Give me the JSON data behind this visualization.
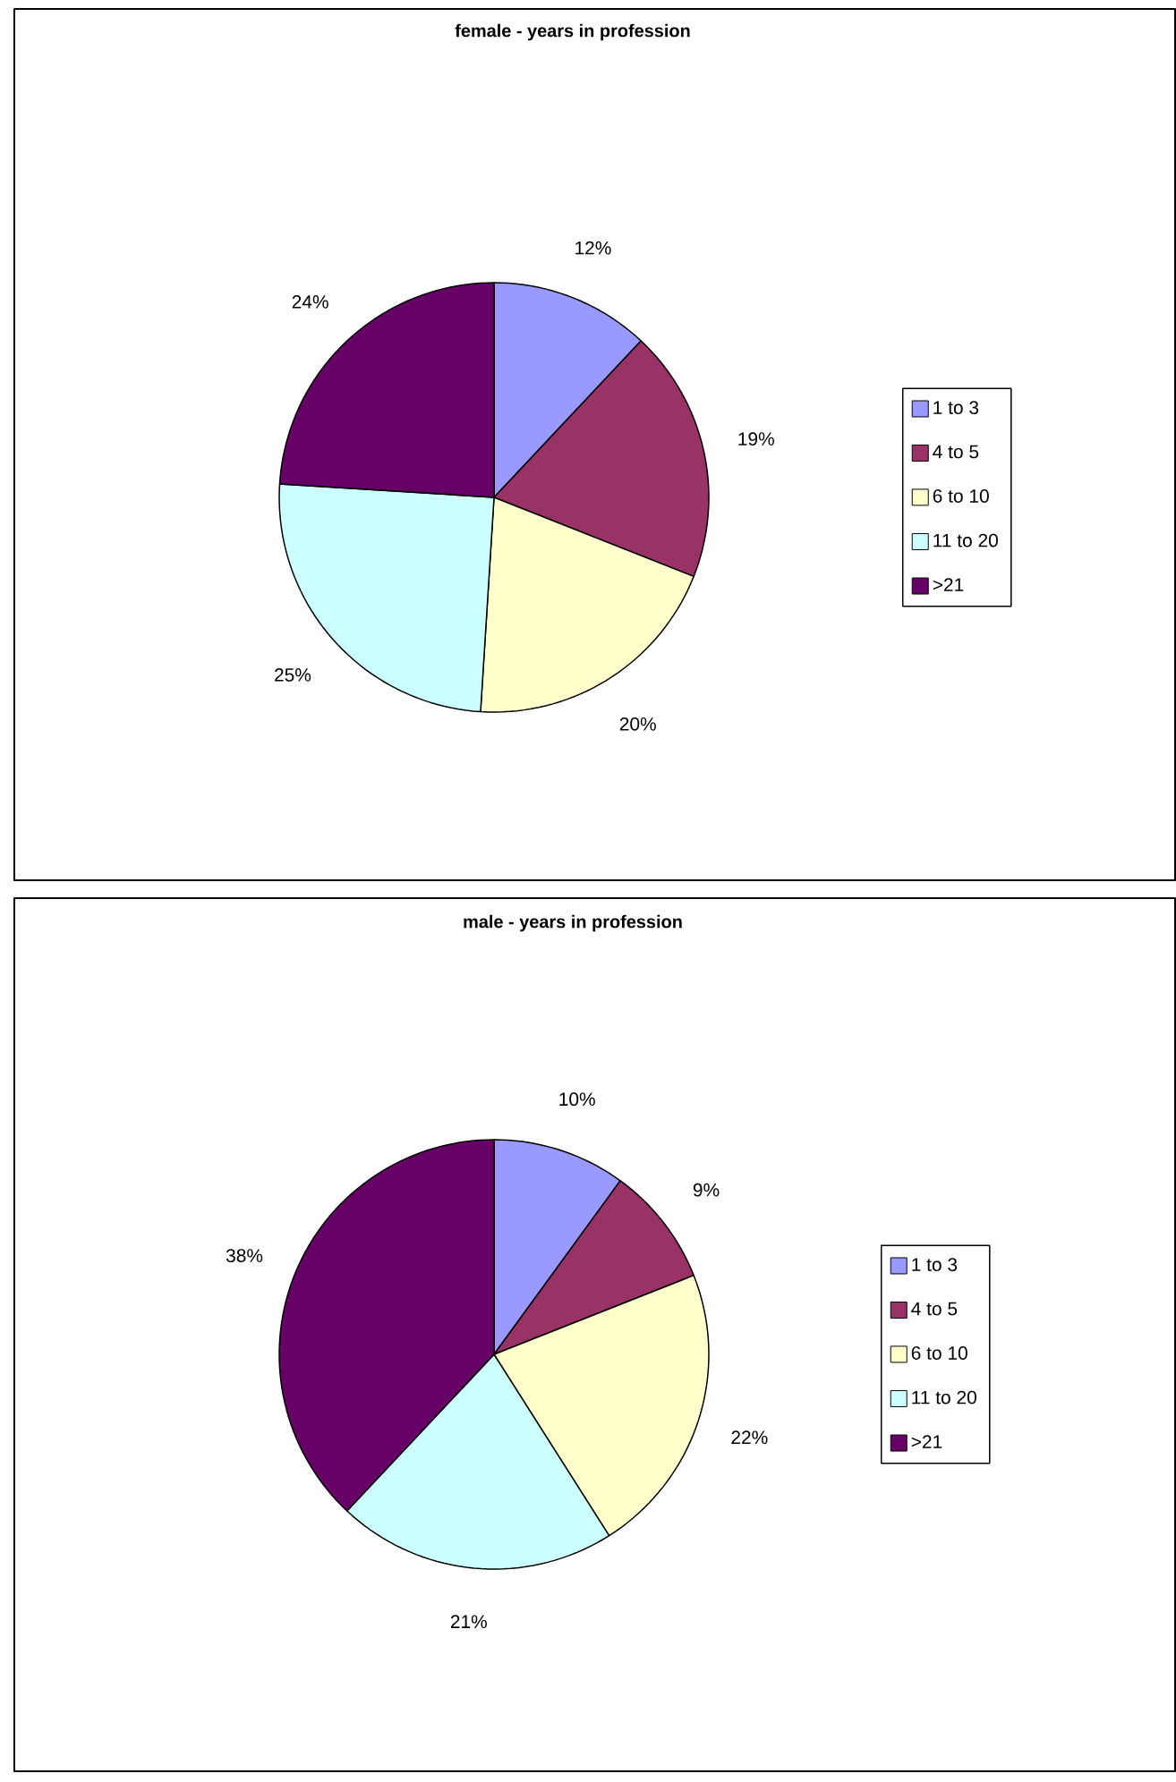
{
  "chart_data": [
    {
      "type": "pie",
      "title": "female - years in profession",
      "categories": [
        "1 to 3",
        "4 to 5",
        "6 to 10",
        "11 to 20",
        ">21"
      ],
      "values": [
        12,
        19,
        20,
        25,
        24
      ],
      "value_labels": [
        "12%",
        "19%",
        "20%",
        "25%",
        "24%"
      ],
      "colors": [
        "#9999ff",
        "#993366",
        "#ffffcc",
        "#ccffff",
        "#660066"
      ],
      "legend": "right"
    },
    {
      "type": "pie",
      "title": "male - years in profession",
      "categories": [
        "1 to 3",
        "4 to 5",
        "6 to 10",
        "11 to 20",
        ">21"
      ],
      "values": [
        10,
        9,
        22,
        21,
        38
      ],
      "value_labels": [
        "10%",
        "9%",
        "22%",
        "21%",
        "38%"
      ],
      "colors": [
        "#9999ff",
        "#993366",
        "#ffffcc",
        "#ccffff",
        "#660066"
      ],
      "legend": "right"
    }
  ]
}
